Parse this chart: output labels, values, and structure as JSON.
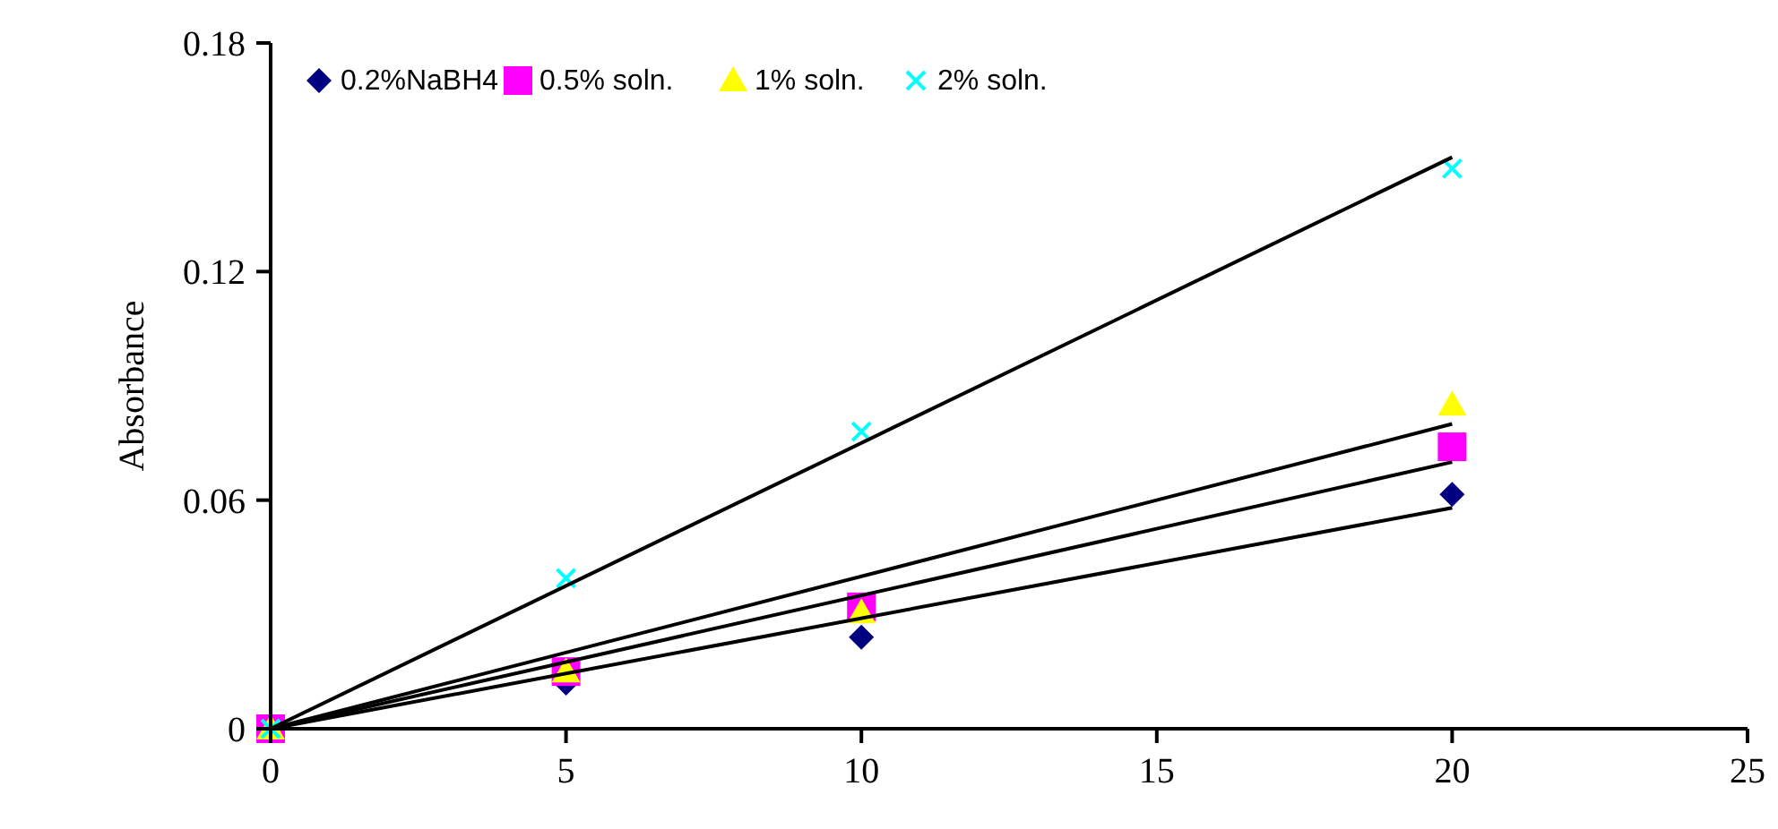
{
  "chart_data": {
    "type": "scatter",
    "ylabel": "Absorbance",
    "xlim": [
      0,
      25
    ],
    "xticks": [
      0,
      5,
      10,
      15,
      20,
      25
    ],
    "ylim": [
      0,
      0.18
    ],
    "yticks": [
      0,
      0.06,
      0.12,
      0.18
    ],
    "legend": "top left",
    "grid": false,
    "series": [
      {
        "name": "0.2%NaBH4",
        "color": "#000080",
        "marker": "diamond",
        "x": [
          5,
          10,
          20
        ],
        "values": [
          0.012,
          0.024,
          0.0615
        ]
      },
      {
        "name": "0.5% soln.",
        "color": "#ff00ff",
        "marker": "square",
        "x": [
          0,
          5,
          10,
          20
        ],
        "values": [
          0,
          0.015,
          0.032,
          0.074
        ]
      },
      {
        "name": "1% soln.",
        "color": "#ffff00",
        "marker": "triangle",
        "x": [
          0,
          5,
          10,
          20
        ],
        "values": [
          0,
          0.015,
          0.0305,
          0.085
        ]
      },
      {
        "name": "2% soln.",
        "color": "#00ffff",
        "marker": "cross",
        "x": [
          0,
          5,
          10,
          20
        ],
        "values": [
          0,
          0.0395,
          0.078,
          0.147
        ]
      },
      {
        "type": "line",
        "color": "#000000",
        "marker": "none",
        "x": [
          0,
          20
        ],
        "values": [
          0,
          0.058
        ]
      },
      {
        "type": "line",
        "color": "#000000",
        "marker": "none",
        "x": [
          0,
          20
        ],
        "values": [
          0,
          0.07
        ]
      },
      {
        "type": "line",
        "color": "#000000",
        "marker": "none",
        "x": [
          0,
          20
        ],
        "values": [
          0,
          0.08
        ]
      },
      {
        "type": "line",
        "color": "#000000",
        "marker": "none",
        "x": [
          0,
          20
        ],
        "values": [
          0,
          0.15
        ]
      }
    ]
  }
}
